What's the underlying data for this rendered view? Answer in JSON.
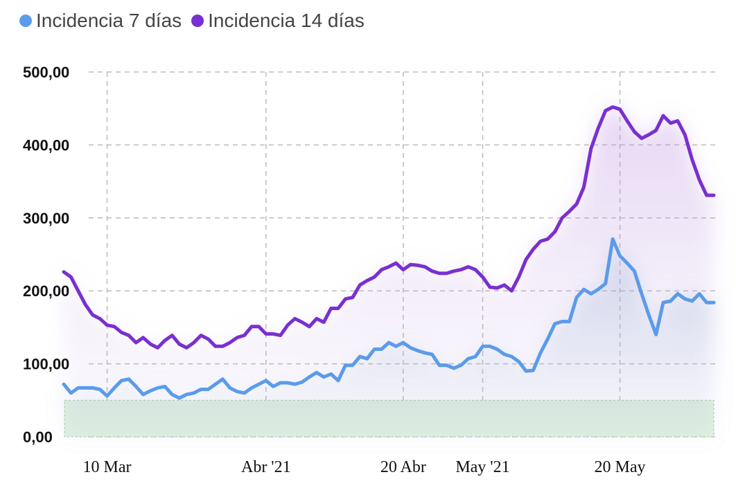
{
  "chart_data": {
    "type": "line",
    "title": "",
    "xlabel": "",
    "ylabel": "",
    "ylim": [
      0,
      500
    ],
    "yticks": [
      "0,00",
      "100,00",
      "200,00",
      "300,00",
      "400,00",
      "500,00"
    ],
    "ytick_values": [
      0,
      100,
      200,
      300,
      400,
      500
    ],
    "xticks": [
      {
        "date": "2021-03-10",
        "label": "10 Mar"
      },
      {
        "date": "2021-04-01",
        "label": "Abr '21"
      },
      {
        "date": "2021-04-20",
        "label": "20 Abr"
      },
      {
        "date": "2021-05-01",
        "label": "May '21"
      },
      {
        "date": "2021-05-20",
        "label": "20 May"
      }
    ],
    "grid": true,
    "legend_position": "top-left",
    "band": {
      "from": 0,
      "to": 50,
      "color": "#dff0e0"
    },
    "x": [
      "2021-03-04",
      "2021-03-05",
      "2021-03-06",
      "2021-03-07",
      "2021-03-08",
      "2021-03-09",
      "2021-03-10",
      "2021-03-11",
      "2021-03-12",
      "2021-03-13",
      "2021-03-14",
      "2021-03-15",
      "2021-03-16",
      "2021-03-17",
      "2021-03-18",
      "2021-03-19",
      "2021-03-20",
      "2021-03-21",
      "2021-03-22",
      "2021-03-23",
      "2021-03-24",
      "2021-03-25",
      "2021-03-26",
      "2021-03-27",
      "2021-03-28",
      "2021-03-29",
      "2021-03-30",
      "2021-03-31",
      "2021-04-01",
      "2021-04-02",
      "2021-04-03",
      "2021-04-04",
      "2021-04-05",
      "2021-04-06",
      "2021-04-07",
      "2021-04-08",
      "2021-04-09",
      "2021-04-10",
      "2021-04-11",
      "2021-04-12",
      "2021-04-13",
      "2021-04-14",
      "2021-04-15",
      "2021-04-16",
      "2021-04-17",
      "2021-04-18",
      "2021-04-19",
      "2021-04-20",
      "2021-04-21",
      "2021-04-22",
      "2021-04-23",
      "2021-04-24",
      "2021-04-25",
      "2021-04-26",
      "2021-04-27",
      "2021-04-28",
      "2021-04-29",
      "2021-04-30",
      "2021-05-01",
      "2021-05-02",
      "2021-05-03",
      "2021-05-04",
      "2021-05-05",
      "2021-05-06",
      "2021-05-07",
      "2021-05-08",
      "2021-05-09",
      "2021-05-10",
      "2021-05-11",
      "2021-05-12",
      "2021-05-13",
      "2021-05-14",
      "2021-05-15",
      "2021-05-16",
      "2021-05-17",
      "2021-05-18",
      "2021-05-19",
      "2021-05-20",
      "2021-05-21",
      "2021-05-22",
      "2021-05-23",
      "2021-05-24",
      "2021-05-25",
      "2021-05-26",
      "2021-05-27",
      "2021-05-28",
      "2021-05-29",
      "2021-05-30",
      "2021-05-31",
      "2021-06-01",
      "2021-06-02"
    ],
    "series": [
      {
        "name": "Incidencia 7 días",
        "color": "#5b9bea",
        "values": [
          72,
          60,
          67,
          67,
          67,
          65,
          56,
          67,
          77,
          79,
          69,
          58,
          63,
          67,
          69,
          58,
          53,
          58,
          60,
          65,
          65,
          72,
          79,
          67,
          62,
          60,
          67,
          72,
          77,
          69,
          74,
          74,
          72,
          75,
          82,
          88,
          82,
          86,
          77,
          98,
          98,
          110,
          107,
          120,
          120,
          129,
          124,
          129,
          122,
          118,
          115,
          113,
          98,
          98,
          94,
          98,
          107,
          110,
          124,
          124,
          120,
          113,
          110,
          103,
          90,
          91,
          115,
          134,
          155,
          158,
          158,
          191,
          202,
          196,
          202,
          210,
          271,
          248,
          238,
          227,
          196,
          167,
          140,
          184,
          186,
          196,
          189,
          186,
          196,
          184,
          184
        ]
      },
      {
        "name": "Incidencia 14 días",
        "color": "#7a2fd0",
        "values": [
          226,
          219,
          200,
          181,
          167,
          162,
          153,
          151,
          143,
          139,
          129,
          136,
          127,
          122,
          132,
          139,
          127,
          122,
          129,
          139,
          134,
          124,
          124,
          129,
          136,
          139,
          151,
          151,
          141,
          141,
          139,
          153,
          162,
          157,
          151,
          162,
          157,
          176,
          176,
          189,
          191,
          208,
          214,
          219,
          229,
          233,
          238,
          229,
          236,
          235,
          233,
          227,
          224,
          224,
          227,
          229,
          233,
          229,
          219,
          205,
          204,
          208,
          200,
          219,
          243,
          257,
          268,
          271,
          281,
          300,
          309,
          319,
          342,
          395,
          423,
          447,
          452,
          449,
          433,
          418,
          409,
          414,
          420,
          440,
          430,
          433,
          414,
          380,
          352,
          331,
          331
        ]
      }
    ]
  }
}
